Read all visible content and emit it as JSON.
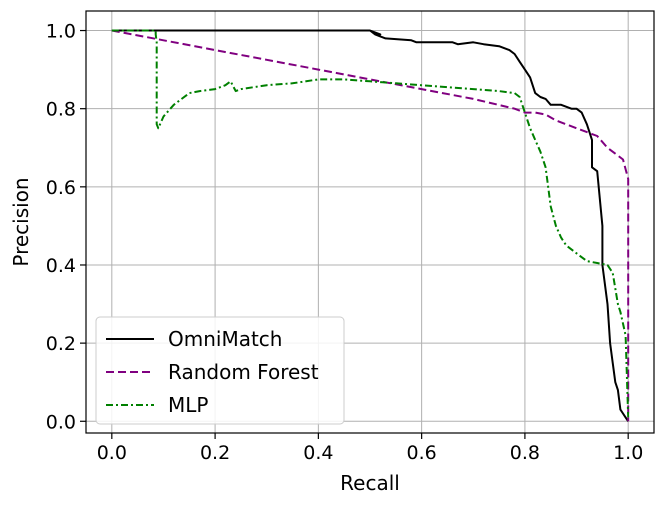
{
  "chart_data": {
    "type": "line",
    "title": "",
    "xlabel": "Recall",
    "ylabel": "Precision",
    "xlim": [
      -0.05,
      1.05
    ],
    "ylim": [
      -0.03,
      1.05
    ],
    "xticks": [
      0.0,
      0.2,
      0.4,
      0.6,
      0.8,
      1.0
    ],
    "xtick_labels": [
      "0.0",
      "0.2",
      "0.4",
      "0.6",
      "0.8",
      "1.0"
    ],
    "yticks": [
      0.0,
      0.2,
      0.4,
      0.6,
      0.8,
      1.0
    ],
    "ytick_labels": [
      "0.0",
      "0.2",
      "0.4",
      "0.6",
      "0.8",
      "1.0"
    ],
    "grid": true,
    "legend_position": "lower-left",
    "series": [
      {
        "name": "OmniMatch",
        "color": "#000000",
        "dash": "solid",
        "x": [
          0.0,
          0.5,
          0.51,
          0.52,
          0.5,
          0.51,
          0.52,
          0.53,
          0.58,
          0.59,
          0.6,
          0.66,
          0.67,
          0.7,
          0.72,
          0.75,
          0.77,
          0.78,
          0.79,
          0.8,
          0.81,
          0.82,
          0.83,
          0.84,
          0.85,
          0.87,
          0.89,
          0.9,
          0.91,
          0.92,
          0.93,
          0.93,
          0.94,
          0.95,
          0.95,
          0.96,
          0.965,
          0.97,
          0.975,
          0.98,
          0.985,
          0.99,
          0.995,
          1.0
        ],
        "y": [
          1.0,
          1.0,
          0.995,
          0.99,
          1.0,
          0.99,
          0.985,
          0.98,
          0.975,
          0.97,
          0.97,
          0.97,
          0.965,
          0.97,
          0.965,
          0.96,
          0.95,
          0.94,
          0.92,
          0.9,
          0.88,
          0.84,
          0.83,
          0.825,
          0.81,
          0.81,
          0.8,
          0.8,
          0.79,
          0.76,
          0.72,
          0.65,
          0.64,
          0.5,
          0.4,
          0.3,
          0.2,
          0.15,
          0.1,
          0.08,
          0.03,
          0.02,
          0.01,
          0.0
        ]
      },
      {
        "name": "Random Forest",
        "color": "#800080",
        "dash": "dashed",
        "x": [
          0.0,
          0.1,
          0.2,
          0.3,
          0.4,
          0.5,
          0.6,
          0.7,
          0.78,
          0.8,
          0.82,
          0.84,
          0.86,
          0.88,
          0.9,
          0.92,
          0.94,
          0.96,
          0.97,
          0.98,
          0.99,
          1.0,
          1.0,
          1.0
        ],
        "y": [
          1.0,
          0.975,
          0.95,
          0.925,
          0.9,
          0.875,
          0.85,
          0.825,
          0.8,
          0.79,
          0.79,
          0.785,
          0.77,
          0.76,
          0.75,
          0.74,
          0.73,
          0.7,
          0.69,
          0.68,
          0.67,
          0.62,
          0.2,
          0.0
        ]
      },
      {
        "name": "MLP",
        "color": "#008000",
        "dash": "dashdot",
        "x": [
          0.0,
          0.085,
          0.085,
          0.087,
          0.087,
          0.09,
          0.1,
          0.12,
          0.15,
          0.17,
          0.2,
          0.22,
          0.23,
          0.24,
          0.25,
          0.3,
          0.35,
          0.4,
          0.45,
          0.5,
          0.55,
          0.6,
          0.65,
          0.7,
          0.75,
          0.78,
          0.79,
          0.8,
          0.81,
          0.82,
          0.83,
          0.84,
          0.85,
          0.86,
          0.87,
          0.88,
          0.9,
          0.92,
          0.94,
          0.96,
          0.97,
          0.98,
          0.985,
          0.99,
          0.995,
          1.0
        ],
        "y": [
          1.0,
          1.0,
          0.99,
          0.97,
          0.76,
          0.75,
          0.78,
          0.81,
          0.84,
          0.845,
          0.85,
          0.86,
          0.87,
          0.845,
          0.85,
          0.86,
          0.865,
          0.875,
          0.875,
          0.87,
          0.865,
          0.86,
          0.855,
          0.85,
          0.845,
          0.84,
          0.83,
          0.79,
          0.75,
          0.72,
          0.69,
          0.65,
          0.55,
          0.5,
          0.47,
          0.45,
          0.43,
          0.41,
          0.405,
          0.4,
          0.38,
          0.3,
          0.28,
          0.25,
          0.22,
          0.01
        ]
      }
    ]
  }
}
